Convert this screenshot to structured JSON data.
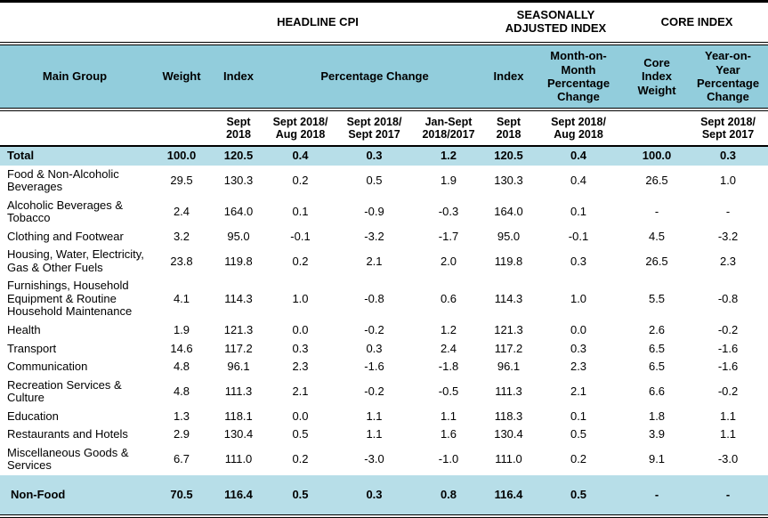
{
  "colors": {
    "header_bg": "#92CDDC",
    "highlight_bg": "#B7DEE8",
    "border": "#000000"
  },
  "section_titles": {
    "headline": "HEADLINE CPI",
    "seasonally_adjusted": "SEASONALLY\nADJUSTED INDEX",
    "core": "CORE INDEX"
  },
  "columns": {
    "main_group": "Main Group",
    "weight": "Weight",
    "index": "Index",
    "percentage_change": "Percentage Change",
    "sa_index": "Index",
    "sa_mom": "Month-on-\nMonth\nPercentage\nChange",
    "core_weight": "Core\nIndex\nWeight",
    "core_yoy": "Year-on-\nYear\nPercentage\nChange"
  },
  "subheaders": {
    "index_period": "Sept\n2018",
    "pct_mom": "Sept 2018/\nAug 2018",
    "pct_yoy": "Sept 2018/\nSept 2017",
    "pct_jan_sept": "Jan-Sept\n2018/2017",
    "sa_index_period": "Sept\n2018",
    "sa_mom_period": "Sept 2018/\nAug 2018",
    "core_yoy_period": "Sept 2018/\nSept 2017"
  },
  "table": {
    "rows": [
      {
        "label": "Total",
        "highlight": true,
        "tall": false,
        "values": [
          "100.0",
          "120.5",
          "0.4",
          "0.3",
          "1.2",
          "120.5",
          "0.4",
          "100.0",
          "0.3"
        ]
      },
      {
        "label": "Food & Non-Alcoholic Beverages",
        "highlight": false,
        "tall": false,
        "values": [
          "29.5",
          "130.3",
          "0.2",
          "0.5",
          "1.9",
          "130.3",
          "0.4",
          "26.5",
          "1.0"
        ]
      },
      {
        "label": "Alcoholic Beverages & Tobacco",
        "highlight": false,
        "tall": false,
        "values": [
          "2.4",
          "164.0",
          "0.1",
          "-0.9",
          "-0.3",
          "164.0",
          "0.1",
          "-",
          "-"
        ]
      },
      {
        "label": "Clothing and Footwear",
        "highlight": false,
        "tall": false,
        "values": [
          "3.2",
          "95.0",
          "-0.1",
          "-3.2",
          "-1.7",
          "95.0",
          "-0.1",
          "4.5",
          "-3.2"
        ]
      },
      {
        "label": "Housing, Water, Electricity, Gas & Other Fuels",
        "highlight": false,
        "tall": false,
        "values": [
          "23.8",
          "119.8",
          "0.2",
          "2.1",
          "2.0",
          "119.8",
          "0.3",
          "26.5",
          "2.3"
        ]
      },
      {
        "label": "Furnishings, Household Equipment  & Routine Household Maintenance",
        "highlight": false,
        "tall": false,
        "values": [
          "4.1",
          "114.3",
          "1.0",
          "-0.8",
          "0.6",
          "114.3",
          "1.0",
          "5.5",
          "-0.8"
        ]
      },
      {
        "label": "Health",
        "highlight": false,
        "tall": false,
        "values": [
          "1.9",
          "121.3",
          "0.0",
          "-0.2",
          "1.2",
          "121.3",
          "0.0",
          "2.6",
          "-0.2"
        ]
      },
      {
        "label": "Transport",
        "highlight": false,
        "tall": false,
        "values": [
          "14.6",
          "117.2",
          "0.3",
          "0.3",
          "2.4",
          "117.2",
          "0.3",
          "6.5",
          "-1.6"
        ]
      },
      {
        "label": "Communication",
        "highlight": false,
        "tall": false,
        "values": [
          "4.8",
          "96.1",
          "2.3",
          "-1.6",
          "-1.8",
          "96.1",
          "2.3",
          "6.5",
          "-1.6"
        ]
      },
      {
        "label": "Recreation Services & Culture",
        "highlight": false,
        "tall": false,
        "values": [
          "4.8",
          "111.3",
          "2.1",
          "-0.2",
          "-0.5",
          "111.3",
          "2.1",
          "6.6",
          "-0.2"
        ]
      },
      {
        "label": "Education",
        "highlight": false,
        "tall": false,
        "values": [
          "1.3",
          "118.1",
          "0.0",
          "1.1",
          "1.1",
          "118.3",
          "0.1",
          "1.8",
          "1.1"
        ]
      },
      {
        "label": "Restaurants and Hotels",
        "highlight": false,
        "tall": false,
        "values": [
          "2.9",
          "130.4",
          "0.5",
          "1.1",
          "1.6",
          "130.4",
          "0.5",
          "3.9",
          "1.1"
        ]
      },
      {
        "label": "Miscellaneous Goods & Services",
        "highlight": false,
        "tall": false,
        "values": [
          "6.7",
          "111.0",
          "0.2",
          "-3.0",
          "-1.0",
          "111.0",
          "0.2",
          "9.1",
          "-3.0"
        ]
      },
      {
        "label": "Non-Food",
        "highlight": true,
        "tall": true,
        "values": [
          "70.5",
          "116.4",
          "0.5",
          "0.3",
          "0.8",
          "116.4",
          "0.5",
          "-",
          "-"
        ]
      }
    ]
  }
}
